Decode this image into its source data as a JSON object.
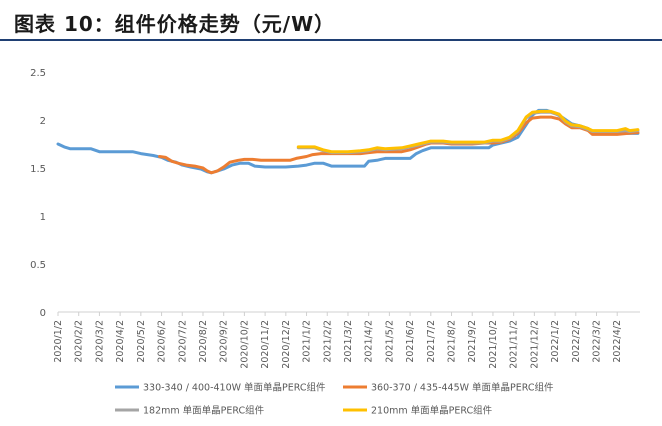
{
  "figure_title": "图表 10：组件价格走势（元/W）",
  "chart_data": {
    "type": "line",
    "title": "",
    "xlabel": "",
    "ylabel": "",
    "ylim": [
      0,
      2.5
    ],
    "y_ticks": [
      "0",
      "0.5",
      "1",
      "1.5",
      "2",
      "2.5"
    ],
    "grid": false,
    "legend_position": "bottom",
    "x_tick_labels": [
      "2020/1/2",
      "2020/2/2",
      "2020/3/2",
      "2020/4/2",
      "2020/5/2",
      "2020/6/2",
      "2020/7/2",
      "2020/8/2",
      "2020/9/2",
      "2020/10/2",
      "2020/11/2",
      "2020/12/2",
      "2021/1/2",
      "2021/2/2",
      "2021/3/2",
      "2021/4/2",
      "2021/5/2",
      "2021/6/2",
      "2021/7/2",
      "2021/8/2",
      "2021/9/2",
      "2021/10/2",
      "2021/11/2",
      "2021/12/2",
      "2022/1/2",
      "2022/2/2",
      "2022/3/2",
      "2022/4/2"
    ],
    "x_range": [
      0,
      28.1
    ],
    "series": [
      {
        "name": "330-340 / 400-410W 单面单晶PERC组件",
        "color": "#5B9BD5",
        "points": [
          [
            0,
            1.75
          ],
          [
            0.3,
            1.72
          ],
          [
            0.6,
            1.7
          ],
          [
            1.0,
            1.7
          ],
          [
            1.6,
            1.7
          ],
          [
            2.0,
            1.67
          ],
          [
            3.0,
            1.67
          ],
          [
            3.6,
            1.67
          ],
          [
            4.0,
            1.65
          ],
          [
            4.6,
            1.63
          ],
          [
            5.0,
            1.61
          ],
          [
            5.3,
            1.58
          ],
          [
            5.7,
            1.56
          ],
          [
            6.0,
            1.53
          ],
          [
            6.4,
            1.51
          ],
          [
            6.9,
            1.49
          ],
          [
            7.2,
            1.46
          ],
          [
            7.4,
            1.45
          ],
          [
            7.7,
            1.47
          ],
          [
            8.0,
            1.49
          ],
          [
            8.4,
            1.53
          ],
          [
            8.8,
            1.55
          ],
          [
            9.2,
            1.55
          ],
          [
            9.5,
            1.52
          ],
          [
            10.0,
            1.51
          ],
          [
            11.0,
            1.51
          ],
          [
            11.6,
            1.52
          ],
          [
            12.0,
            1.53
          ],
          [
            12.4,
            1.55
          ],
          [
            12.8,
            1.55
          ],
          [
            13.2,
            1.52
          ],
          [
            14.0,
            1.52
          ],
          [
            14.8,
            1.52
          ],
          [
            15.0,
            1.57
          ],
          [
            15.4,
            1.58
          ],
          [
            15.8,
            1.6
          ],
          [
            16.6,
            1.6
          ],
          [
            17.0,
            1.6
          ],
          [
            17.3,
            1.65
          ],
          [
            17.6,
            1.68
          ],
          [
            18.0,
            1.71
          ],
          [
            18.5,
            1.71
          ],
          [
            19.0,
            1.71
          ],
          [
            20.0,
            1.71
          ],
          [
            20.8,
            1.71
          ],
          [
            21.0,
            1.74
          ],
          [
            21.4,
            1.76
          ],
          [
            21.8,
            1.78
          ],
          [
            22.2,
            1.82
          ],
          [
            22.6,
            1.95
          ],
          [
            22.9,
            2.05
          ],
          [
            23.2,
            2.1
          ],
          [
            23.6,
            2.1
          ],
          [
            24.0,
            2.07
          ],
          [
            24.4,
            2.02
          ],
          [
            24.8,
            1.96
          ],
          [
            25.2,
            1.94
          ],
          [
            25.6,
            1.91
          ],
          [
            25.8,
            1.86
          ],
          [
            26.2,
            1.86
          ],
          [
            27.0,
            1.86
          ],
          [
            27.5,
            1.86
          ],
          [
            28.0,
            1.86
          ]
        ]
      },
      {
        "name": "360-370 / 435-445W 单面单晶PERC组件",
        "color": "#ED7D31",
        "points": [
          [
            4.9,
            1.62
          ],
          [
            5.2,
            1.61
          ],
          [
            5.5,
            1.57
          ],
          [
            5.8,
            1.55
          ],
          [
            6.2,
            1.53
          ],
          [
            6.6,
            1.52
          ],
          [
            7.0,
            1.5
          ],
          [
            7.2,
            1.47
          ],
          [
            7.4,
            1.45
          ],
          [
            7.7,
            1.47
          ],
          [
            8.0,
            1.51
          ],
          [
            8.3,
            1.56
          ],
          [
            8.7,
            1.58
          ],
          [
            9.0,
            1.59
          ],
          [
            9.4,
            1.59
          ],
          [
            9.8,
            1.58
          ],
          [
            10.2,
            1.58
          ],
          [
            11.2,
            1.58
          ],
          [
            11.5,
            1.6
          ],
          [
            12.0,
            1.62
          ],
          [
            12.3,
            1.64
          ],
          [
            12.7,
            1.65
          ],
          [
            14.0,
            1.65
          ],
          [
            14.6,
            1.65
          ],
          [
            15.0,
            1.66
          ],
          [
            15.4,
            1.67
          ],
          [
            15.8,
            1.67
          ],
          [
            16.6,
            1.67
          ],
          [
            17.0,
            1.69
          ],
          [
            17.4,
            1.72
          ],
          [
            17.8,
            1.75
          ],
          [
            18.0,
            1.76
          ],
          [
            18.6,
            1.76
          ],
          [
            19.0,
            1.75
          ],
          [
            20.0,
            1.75
          ],
          [
            20.6,
            1.76
          ],
          [
            21.0,
            1.76
          ],
          [
            21.4,
            1.77
          ],
          [
            21.8,
            1.8
          ],
          [
            22.2,
            1.86
          ],
          [
            22.6,
            1.97
          ],
          [
            22.9,
            2.02
          ],
          [
            23.3,
            2.03
          ],
          [
            23.8,
            2.03
          ],
          [
            24.2,
            2.01
          ],
          [
            24.5,
            1.96
          ],
          [
            24.8,
            1.92
          ],
          [
            25.2,
            1.92
          ],
          [
            25.6,
            1.89
          ],
          [
            25.8,
            1.85
          ],
          [
            26.2,
            1.85
          ],
          [
            27.0,
            1.85
          ],
          [
            27.5,
            1.86
          ],
          [
            28.0,
            1.87
          ]
        ]
      },
      {
        "name": "182mm 单面单晶PERC组件",
        "color": "#A5A5A5",
        "points": [
          [
            11.6,
            1.71
          ],
          [
            12.4,
            1.71
          ],
          [
            12.8,
            1.68
          ],
          [
            13.2,
            1.66
          ],
          [
            14.0,
            1.66
          ],
          [
            14.6,
            1.67
          ],
          [
            15.0,
            1.68
          ],
          [
            15.4,
            1.7
          ],
          [
            15.8,
            1.69
          ],
          [
            16.6,
            1.7
          ],
          [
            17.0,
            1.72
          ],
          [
            17.4,
            1.74
          ],
          [
            17.8,
            1.76
          ],
          [
            18.0,
            1.77
          ],
          [
            18.6,
            1.77
          ],
          [
            19.0,
            1.76
          ],
          [
            20.0,
            1.76
          ],
          [
            20.6,
            1.76
          ],
          [
            21.0,
            1.78
          ],
          [
            21.4,
            1.78
          ],
          [
            21.8,
            1.81
          ],
          [
            22.2,
            1.88
          ],
          [
            22.6,
            2.02
          ],
          [
            22.9,
            2.07
          ],
          [
            23.3,
            2.08
          ],
          [
            23.8,
            2.08
          ],
          [
            24.2,
            2.05
          ],
          [
            24.5,
            1.98
          ],
          [
            24.8,
            1.94
          ],
          [
            25.2,
            1.93
          ],
          [
            25.6,
            1.9
          ],
          [
            25.8,
            1.88
          ],
          [
            26.2,
            1.88
          ],
          [
            27.0,
            1.88
          ],
          [
            27.4,
            1.89
          ],
          [
            27.6,
            1.88
          ],
          [
            28.0,
            1.89
          ]
        ]
      },
      {
        "name": "210mm 单面单晶PERC组件",
        "color": "#FFC000",
        "points": [
          [
            11.6,
            1.72
          ],
          [
            12.4,
            1.72
          ],
          [
            12.8,
            1.69
          ],
          [
            13.2,
            1.67
          ],
          [
            14.0,
            1.67
          ],
          [
            14.6,
            1.68
          ],
          [
            15.0,
            1.69
          ],
          [
            15.4,
            1.71
          ],
          [
            15.8,
            1.7
          ],
          [
            16.6,
            1.71
          ],
          [
            17.0,
            1.73
          ],
          [
            17.4,
            1.75
          ],
          [
            17.8,
            1.77
          ],
          [
            18.0,
            1.78
          ],
          [
            18.6,
            1.78
          ],
          [
            19.0,
            1.77
          ],
          [
            20.0,
            1.77
          ],
          [
            20.6,
            1.77
          ],
          [
            21.0,
            1.79
          ],
          [
            21.4,
            1.79
          ],
          [
            21.8,
            1.82
          ],
          [
            22.2,
            1.89
          ],
          [
            22.6,
            2.03
          ],
          [
            22.9,
            2.08
          ],
          [
            23.3,
            2.09
          ],
          [
            23.8,
            2.09
          ],
          [
            24.2,
            2.06
          ],
          [
            24.5,
            1.99
          ],
          [
            24.8,
            1.95
          ],
          [
            25.2,
            1.94
          ],
          [
            25.6,
            1.91
          ],
          [
            25.8,
            1.89
          ],
          [
            26.2,
            1.89
          ],
          [
            27.0,
            1.89
          ],
          [
            27.4,
            1.91
          ],
          [
            27.6,
            1.89
          ],
          [
            28.0,
            1.9
          ]
        ]
      }
    ]
  }
}
